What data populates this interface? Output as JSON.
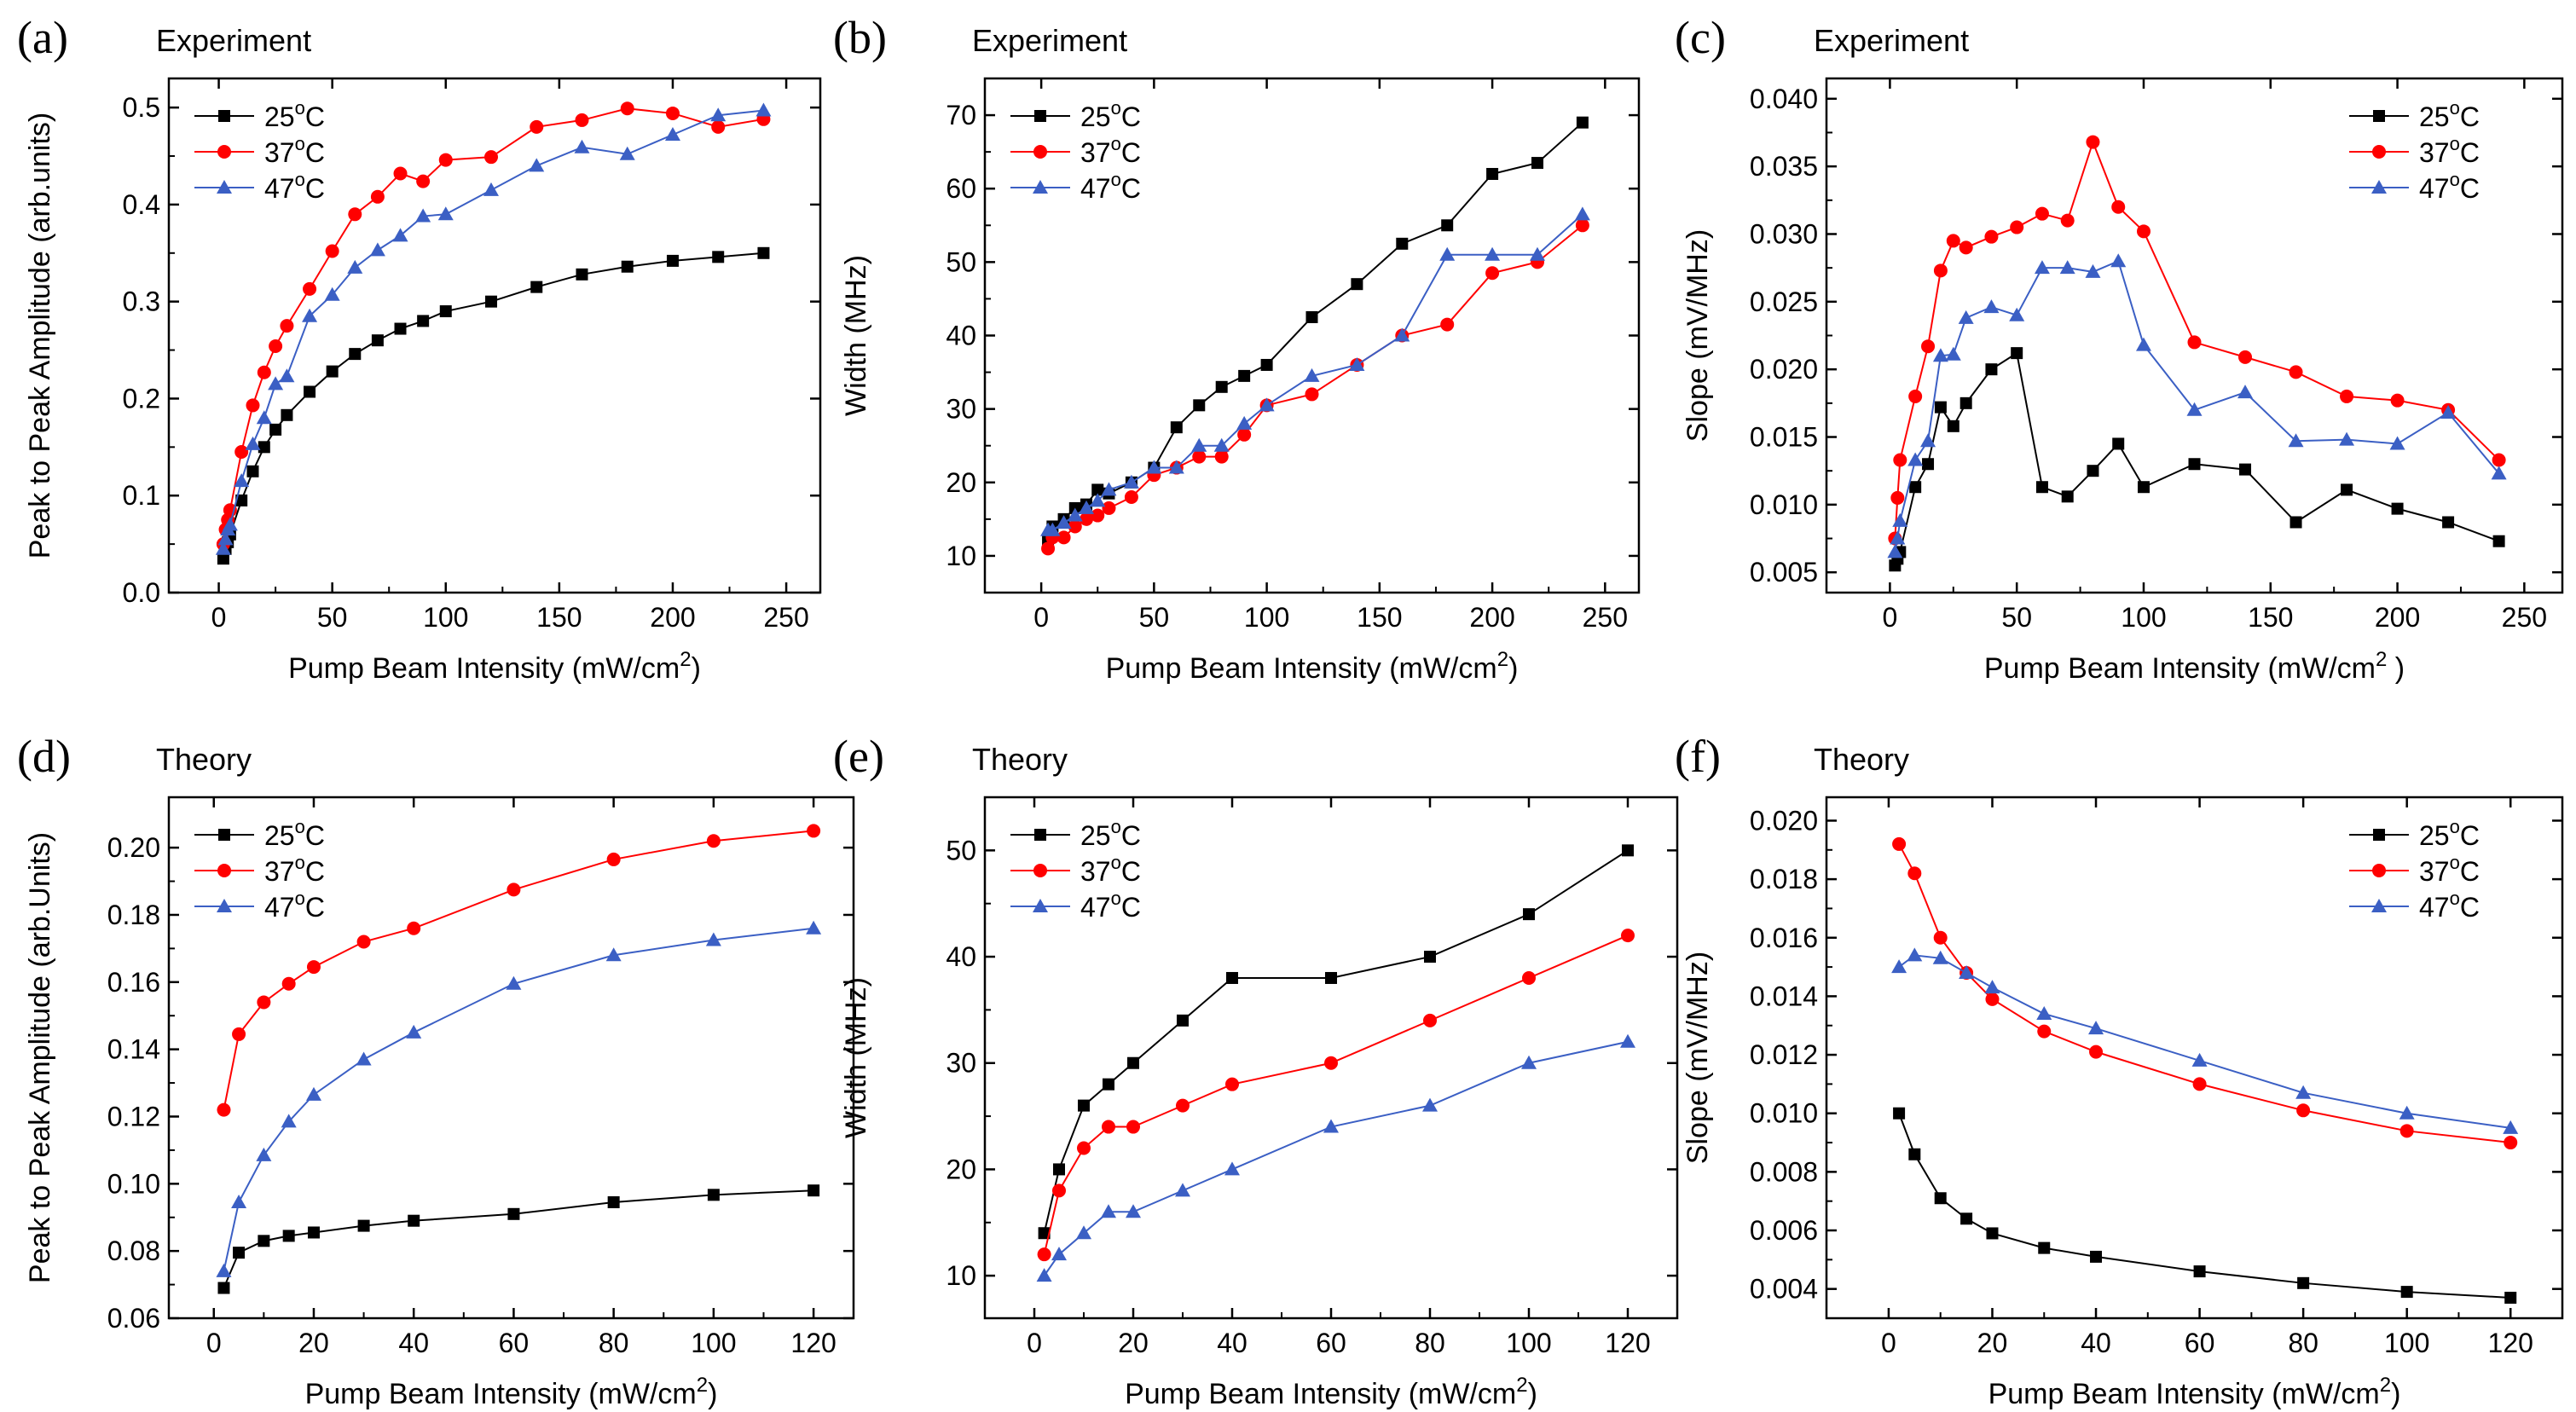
{
  "colors": {
    "s25": "#000000",
    "s37": "#ff0000",
    "s47": "#3b5fc4"
  },
  "chart_data": [
    {
      "letter": "(a)",
      "title": "Experiment",
      "type": "line",
      "xlabel": "Pump Beam Intensity (mW/cm",
      "xlabel_sup": "2",
      "xlabel_end": ")",
      "ylabel": "Peak to Peak Amplitude (arb.units)",
      "xlim": [
        -22,
        265
      ],
      "ylim": [
        0.0,
        0.53
      ],
      "xticks": [
        0,
        50,
        100,
        150,
        200,
        250
      ],
      "xtick_labels": [
        "0",
        "50",
        "100",
        "150",
        "200",
        "250"
      ],
      "yticks": [
        0.0,
        0.1,
        0.2,
        0.3,
        0.4,
        0.5
      ],
      "ytick_labels": [
        "0.0",
        "0.1",
        "0.2",
        "0.3",
        "0.4",
        "0.5"
      ],
      "legend": "top-left",
      "series": [
        {
          "name": "25",
          "sup": "o",
          "unit": "C",
          "marker": "square",
          "colorKey": "s25",
          "x": [
            2,
            3,
            4,
            5,
            10,
            15,
            20,
            25,
            30,
            40,
            50,
            60,
            70,
            80,
            90,
            100,
            120,
            140,
            160,
            180,
            200,
            220,
            240
          ],
          "y": [
            0.035,
            0.045,
            0.052,
            0.06,
            0.095,
            0.125,
            0.15,
            0.168,
            0.183,
            0.207,
            0.228,
            0.246,
            0.26,
            0.272,
            0.28,
            0.29,
            0.3,
            0.315,
            0.328,
            0.336,
            0.342,
            0.346,
            0.35
          ]
        },
        {
          "name": "37",
          "sup": "o",
          "unit": "C",
          "marker": "circle",
          "colorKey": "s37",
          "x": [
            2,
            3,
            4,
            5,
            10,
            15,
            20,
            25,
            30,
            40,
            50,
            60,
            70,
            80,
            90,
            100,
            120,
            140,
            160,
            180,
            200,
            220,
            240
          ],
          "y": [
            0.05,
            0.065,
            0.075,
            0.085,
            0.145,
            0.193,
            0.227,
            0.254,
            0.275,
            0.313,
            0.352,
            0.39,
            0.408,
            0.432,
            0.424,
            0.446,
            0.449,
            0.48,
            0.487,
            0.499,
            0.494,
            0.48,
            0.488
          ]
        },
        {
          "name": "47",
          "sup": "o",
          "unit": "C",
          "marker": "triangle",
          "colorKey": "s47",
          "x": [
            2,
            3,
            4,
            5,
            10,
            15,
            20,
            25,
            30,
            40,
            50,
            60,
            70,
            80,
            90,
            100,
            120,
            140,
            160,
            180,
            200,
            220,
            240
          ],
          "y": [
            0.045,
            0.055,
            0.065,
            0.07,
            0.115,
            0.153,
            0.18,
            0.215,
            0.223,
            0.285,
            0.307,
            0.335,
            0.353,
            0.368,
            0.388,
            0.39,
            0.415,
            0.44,
            0.459,
            0.452,
            0.472,
            0.492,
            0.497
          ]
        }
      ]
    },
    {
      "letter": "(b)",
      "title": "Experiment",
      "type": "line",
      "xlabel": "Pump Beam Intensity (mW/cm",
      "xlabel_sup": "2",
      "xlabel_end": ")",
      "ylabel": "Width (MHz)",
      "xlim": [
        -25,
        265
      ],
      "ylim": [
        5,
        75
      ],
      "xticks": [
        0,
        50,
        100,
        150,
        200,
        250
      ],
      "xtick_labels": [
        "0",
        "50",
        "100",
        "150",
        "200",
        "250"
      ],
      "yticks": [
        10,
        20,
        30,
        40,
        50,
        60,
        70
      ],
      "ytick_labels": [
        "10",
        "20",
        "30",
        "40",
        "50",
        "60",
        "70"
      ],
      "legend": "top-left",
      "series": [
        {
          "name": "25",
          "sup": "o",
          "unit": "C",
          "marker": "square",
          "colorKey": "s25",
          "x": [
            3,
            5,
            10,
            15,
            20,
            25,
            30,
            40,
            50,
            60,
            70,
            80,
            90,
            100,
            120,
            140,
            160,
            180,
            200,
            220,
            240
          ],
          "y": [
            12,
            14,
            15,
            16.5,
            17,
            19,
            18.5,
            20,
            22,
            27.5,
            30.5,
            33,
            34.5,
            36,
            42.5,
            47,
            52.5,
            55,
            62,
            63.5,
            69
          ]
        },
        {
          "name": "37",
          "sup": "o",
          "unit": "C",
          "marker": "circle",
          "colorKey": "s37",
          "x": [
            3,
            5,
            10,
            15,
            20,
            25,
            30,
            40,
            50,
            60,
            70,
            80,
            90,
            100,
            120,
            140,
            160,
            180,
            200,
            220,
            240
          ],
          "y": [
            11,
            12.5,
            12.5,
            14,
            15,
            15.5,
            16.5,
            18,
            21,
            22,
            23.5,
            23.5,
            26.5,
            30.5,
            32,
            36,
            40,
            41.5,
            48.5,
            50,
            55
          ]
        },
        {
          "name": "47",
          "sup": "o",
          "unit": "C",
          "marker": "triangle",
          "colorKey": "s47",
          "x": [
            3,
            5,
            10,
            15,
            20,
            25,
            30,
            40,
            50,
            60,
            70,
            80,
            90,
            100,
            120,
            140,
            160,
            180,
            200,
            220,
            240
          ],
          "y": [
            13.5,
            13.5,
            14.5,
            15.5,
            16.5,
            17.5,
            19,
            20,
            22,
            22,
            25,
            25,
            28,
            30.5,
            34.5,
            36,
            40,
            51,
            51,
            51,
            56.5
          ]
        }
      ]
    },
    {
      "letter": "(c)",
      "title": "Experiment",
      "type": "line",
      "xlabel": "Pump Beam Intensity (mW/cm",
      "xlabel_sup": "2",
      "xlabel_end": " )",
      "ylabel": "Slope (mV/MHz)",
      "xlim": [
        -25,
        265
      ],
      "ylim": [
        0.0035,
        0.0415
      ],
      "xticks": [
        0,
        50,
        100,
        150,
        200,
        250
      ],
      "xtick_labels": [
        "0",
        "50",
        "100",
        "150",
        "200",
        "250"
      ],
      "yticks": [
        0.005,
        0.01,
        0.015,
        0.02,
        0.025,
        0.03,
        0.035,
        0.04
      ],
      "ytick_labels": [
        "0.005",
        "0.010",
        "0.015",
        "0.020",
        "0.025",
        "0.030",
        "0.035",
        "0.040"
      ],
      "legend": "top-right",
      "series": [
        {
          "name": "25",
          "sup": "o",
          "unit": "C",
          "marker": "square",
          "colorKey": "s25",
          "x": [
            2,
            3,
            4,
            10,
            15,
            20,
            25,
            30,
            40,
            50,
            60,
            70,
            80,
            90,
            100,
            120,
            140,
            160,
            180,
            200,
            220,
            240
          ],
          "y": [
            0.0055,
            0.006,
            0.0065,
            0.0113,
            0.013,
            0.0172,
            0.0158,
            0.0175,
            0.02,
            0.0212,
            0.0113,
            0.0106,
            0.0125,
            0.0145,
            0.0113,
            0.013,
            0.0126,
            0.0087,
            0.0111,
            0.0097,
            0.0087,
            0.0073
          ]
        },
        {
          "name": "37",
          "sup": "o",
          "unit": "C",
          "marker": "circle",
          "colorKey": "s37",
          "x": [
            2,
            3,
            4,
            10,
            15,
            20,
            25,
            30,
            40,
            50,
            60,
            70,
            80,
            90,
            100,
            120,
            140,
            160,
            180,
            200,
            220,
            240
          ],
          "y": [
            0.0075,
            0.0105,
            0.0133,
            0.018,
            0.0217,
            0.0273,
            0.0295,
            0.029,
            0.0298,
            0.0305,
            0.0315,
            0.031,
            0.0368,
            0.032,
            0.0302,
            0.022,
            0.0209,
            0.0198,
            0.018,
            0.0177,
            0.017,
            0.0133
          ]
        },
        {
          "name": "47",
          "sup": "o",
          "unit": "C",
          "marker": "triangle",
          "colorKey": "s47",
          "x": [
            2,
            3,
            4,
            10,
            15,
            20,
            25,
            30,
            40,
            50,
            60,
            70,
            80,
            90,
            100,
            120,
            140,
            160,
            180,
            200,
            220,
            240
          ],
          "y": [
            0.0065,
            0.0075,
            0.0088,
            0.0133,
            0.0147,
            0.021,
            0.0211,
            0.0238,
            0.0246,
            0.024,
            0.0275,
            0.0275,
            0.0272,
            0.028,
            0.0218,
            0.017,
            0.0183,
            0.0147,
            0.0148,
            0.0145,
            0.0168,
            0.0123
          ]
        }
      ]
    },
    {
      "letter": "(d)",
      "title": "Theory",
      "type": "line",
      "xlabel": "Pump Beam Intensity (mW/cm",
      "xlabel_sup": "2",
      "xlabel_end": ")",
      "ylabel": "Peak to Peak Amplitude (arb.Units)",
      "xlim": [
        -9,
        128
      ],
      "ylim": [
        0.06,
        0.215
      ],
      "xticks": [
        0,
        20,
        40,
        60,
        80,
        100,
        120
      ],
      "xtick_labels": [
        "0",
        "20",
        "40",
        "60",
        "80",
        "100",
        "120"
      ],
      "yticks": [
        0.06,
        0.08,
        0.1,
        0.12,
        0.14,
        0.16,
        0.18,
        0.2
      ],
      "ytick_labels": [
        "0.06",
        "0.08",
        "0.10",
        "0.12",
        "0.14",
        "0.16",
        "0.18",
        "0.20"
      ],
      "legend": "top-left",
      "series": [
        {
          "name": "25",
          "sup": "o",
          "unit": "C",
          "marker": "square",
          "colorKey": "s25",
          "x": [
            2,
            5,
            10,
            15,
            20,
            30,
            40,
            60,
            80,
            100,
            120
          ],
          "y": [
            0.069,
            0.0795,
            0.083,
            0.0845,
            0.0855,
            0.0875,
            0.089,
            0.091,
            0.0945,
            0.0967,
            0.098
          ]
        },
        {
          "name": "37",
          "sup": "o",
          "unit": "C",
          "marker": "circle",
          "colorKey": "s37",
          "x": [
            2,
            5,
            10,
            15,
            20,
            30,
            40,
            60,
            80,
            100,
            120
          ],
          "y": [
            0.122,
            0.1445,
            0.154,
            0.1595,
            0.1645,
            0.172,
            0.176,
            0.1875,
            0.1965,
            0.202,
            0.205
          ]
        },
        {
          "name": "47",
          "sup": "o",
          "unit": "C",
          "marker": "triangle",
          "colorKey": "s47",
          "x": [
            2,
            5,
            10,
            15,
            20,
            30,
            40,
            60,
            80,
            100,
            120
          ],
          "y": [
            0.074,
            0.0945,
            0.1085,
            0.1185,
            0.1265,
            0.137,
            0.145,
            0.1595,
            0.168,
            0.1725,
            0.176
          ]
        }
      ]
    },
    {
      "letter": "(e)",
      "title": "Theory",
      "type": "line",
      "xlabel": "Pump Beam Intensity (mW/cm",
      "xlabel_sup": "2",
      "xlabel_end": ")",
      "ylabel": "Width (MHz)",
      "xlim": [
        -10,
        130
      ],
      "ylim": [
        6,
        55
      ],
      "xticks": [
        0,
        20,
        40,
        60,
        80,
        100,
        120
      ],
      "xtick_labels": [
        "0",
        "20",
        "40",
        "60",
        "80",
        "100",
        "120"
      ],
      "yticks": [
        10,
        20,
        30,
        40,
        50
      ],
      "ytick_labels": [
        "10",
        "20",
        "30",
        "40",
        "50"
      ],
      "legend": "top-left",
      "series": [
        {
          "name": "25",
          "sup": "o",
          "unit": "C",
          "marker": "square",
          "colorKey": "s25",
          "x": [
            2,
            5,
            10,
            15,
            20,
            30,
            40,
            60,
            80,
            100,
            120
          ],
          "y": [
            14,
            20,
            26,
            28,
            30,
            34,
            38,
            38,
            40,
            44,
            50
          ]
        },
        {
          "name": "37",
          "sup": "o",
          "unit": "C",
          "marker": "circle",
          "colorKey": "s37",
          "x": [
            2,
            5,
            10,
            15,
            20,
            30,
            40,
            60,
            80,
            100,
            120
          ],
          "y": [
            12,
            18,
            22,
            24,
            24,
            26,
            28,
            30,
            34,
            38,
            42
          ]
        },
        {
          "name": "47",
          "sup": "o",
          "unit": "C",
          "marker": "triangle",
          "colorKey": "s47",
          "x": [
            2,
            5,
            10,
            15,
            20,
            30,
            40,
            60,
            80,
            100,
            120
          ],
          "y": [
            10,
            12,
            14,
            16,
            16,
            18,
            20,
            24,
            26,
            30,
            32
          ]
        }
      ]
    },
    {
      "letter": "(f)",
      "title": "Theory",
      "type": "line",
      "xlabel": "Pump Beam Intensity (mW/cm",
      "xlabel_sup": "2",
      "xlabel_end": ")",
      "ylabel": "Slope (mV/MHz)",
      "xlim": [
        -12,
        130
      ],
      "ylim": [
        0.003,
        0.0208
      ],
      "xticks": [
        0,
        20,
        40,
        60,
        80,
        100,
        120
      ],
      "xtick_labels": [
        "0",
        "20",
        "40",
        "60",
        "80",
        "100",
        "120"
      ],
      "yticks": [
        0.004,
        0.006,
        0.008,
        0.01,
        0.012,
        0.014,
        0.016,
        0.018,
        0.02
      ],
      "ytick_labels": [
        "0.004",
        "0.006",
        "0.008",
        "0.010",
        "0.012",
        "0.014",
        "0.016",
        "0.018",
        "0.020"
      ],
      "legend": "top-right",
      "series": [
        {
          "name": "25",
          "sup": "o",
          "unit": "C",
          "marker": "square",
          "colorKey": "s25",
          "x": [
            2,
            5,
            10,
            15,
            20,
            30,
            40,
            60,
            80,
            100,
            120
          ],
          "y": [
            0.01,
            0.0086,
            0.0071,
            0.0064,
            0.0059,
            0.0054,
            0.0051,
            0.0046,
            0.0042,
            0.0039,
            0.0037
          ]
        },
        {
          "name": "37",
          "sup": "o",
          "unit": "C",
          "marker": "circle",
          "colorKey": "s37",
          "x": [
            2,
            5,
            10,
            15,
            20,
            30,
            40,
            60,
            80,
            100,
            120
          ],
          "y": [
            0.0192,
            0.0182,
            0.016,
            0.0148,
            0.0139,
            0.0128,
            0.0121,
            0.011,
            0.0101,
            0.0094,
            0.009
          ]
        },
        {
          "name": "47",
          "sup": "o",
          "unit": "C",
          "marker": "triangle",
          "colorKey": "s47",
          "x": [
            2,
            5,
            10,
            15,
            20,
            30,
            40,
            60,
            80,
            100,
            120
          ],
          "y": [
            0.015,
            0.0154,
            0.0153,
            0.0148,
            0.0143,
            0.0134,
            0.0129,
            0.0118,
            0.0107,
            0.01,
            0.0095
          ]
        }
      ]
    }
  ]
}
